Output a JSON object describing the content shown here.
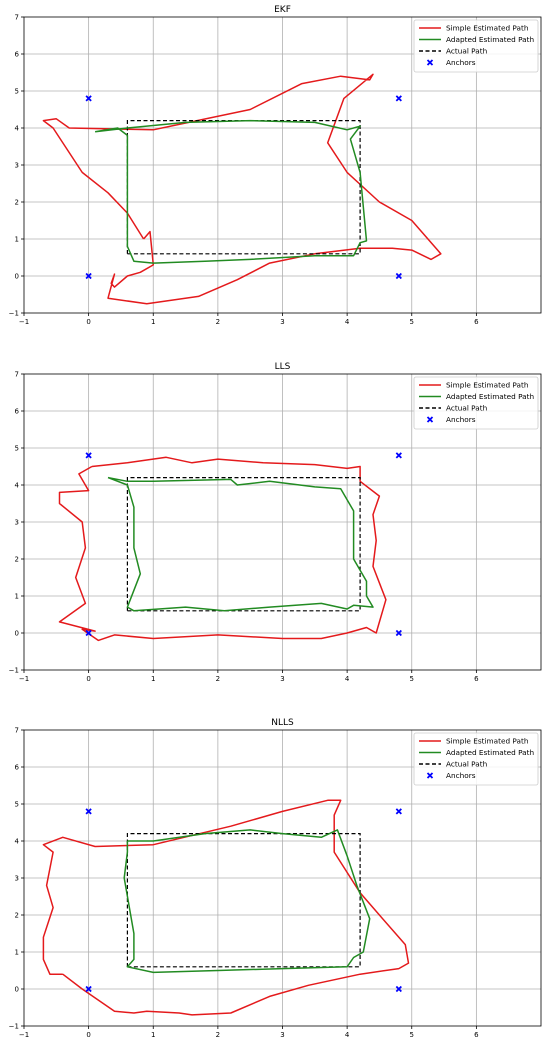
{
  "chart_data": [
    {
      "type": "line",
      "title": "EKF",
      "xlabel": "",
      "ylabel": "",
      "xlim": [
        -1,
        7
      ],
      "ylim": [
        -1,
        7
      ],
      "x_ticks": [
        -1,
        0,
        1,
        2,
        3,
        4,
        5,
        6
      ],
      "y_ticks": [
        -1,
        0,
        1,
        2,
        3,
        4,
        5,
        6,
        7
      ],
      "grid": true,
      "legend_position": "top-right",
      "legend": [
        "Simple Estimated Path",
        "Adapted Estimated Path",
        "Actual Path",
        "Anchors"
      ],
      "colors": {
        "simple": "#e41a1c",
        "adapted": "#228b22",
        "actual": "#000000",
        "anchors": "#0000ff"
      },
      "anchors": [
        [
          0,
          4.8
        ],
        [
          4.8,
          4.8
        ],
        [
          0,
          0
        ],
        [
          4.8,
          0
        ]
      ],
      "actual_path": [
        [
          0.6,
          0.6
        ],
        [
          4.2,
          0.6
        ],
        [
          4.2,
          4.2
        ],
        [
          0.6,
          4.2
        ],
        [
          0.6,
          0.6
        ]
      ],
      "series": [
        {
          "name": "Simple Estimated Path",
          "points": [
            [
              0.85,
              1.0
            ],
            [
              0.95,
              1.2
            ],
            [
              1.0,
              0.3
            ],
            [
              0.8,
              0.1
            ],
            [
              0.6,
              0.0
            ],
            [
              0.4,
              -0.3
            ],
            [
              0.35,
              -0.2
            ],
            [
              0.4,
              0.05
            ],
            [
              0.3,
              -0.6
            ],
            [
              0.9,
              -0.75
            ],
            [
              1.7,
              -0.55
            ],
            [
              2.3,
              -0.1
            ],
            [
              2.8,
              0.35
            ],
            [
              3.5,
              0.6
            ],
            [
              4.2,
              0.75
            ],
            [
              4.7,
              0.75
            ],
            [
              5.0,
              0.7
            ],
            [
              5.3,
              0.45
            ],
            [
              5.45,
              0.6
            ],
            [
              5.0,
              1.5
            ],
            [
              4.5,
              2.0
            ],
            [
              4.0,
              2.8
            ],
            [
              3.7,
              3.6
            ],
            [
              3.95,
              4.8
            ],
            [
              4.4,
              5.45
            ],
            [
              4.35,
              5.3
            ],
            [
              3.9,
              5.4
            ],
            [
              3.3,
              5.2
            ],
            [
              2.5,
              4.5
            ],
            [
              1.0,
              3.95
            ],
            [
              -0.3,
              4.0
            ],
            [
              -0.5,
              4.25
            ],
            [
              -0.7,
              4.2
            ],
            [
              -0.55,
              4.0
            ],
            [
              -0.1,
              2.8
            ],
            [
              0.3,
              2.25
            ],
            [
              0.6,
              1.7
            ],
            [
              0.85,
              1.0
            ]
          ]
        },
        {
          "name": "Adapted Estimated Path",
          "points": [
            [
              0.1,
              3.9
            ],
            [
              0.45,
              4.0
            ],
            [
              0.6,
              3.8
            ],
            [
              0.6,
              0.8
            ],
            [
              0.7,
              0.4
            ],
            [
              1.0,
              0.35
            ],
            [
              1.8,
              0.4
            ],
            [
              2.5,
              0.45
            ],
            [
              3.5,
              0.55
            ],
            [
              4.1,
              0.55
            ],
            [
              4.2,
              0.9
            ],
            [
              4.3,
              0.95
            ],
            [
              4.2,
              2.8
            ],
            [
              4.05,
              3.7
            ],
            [
              4.2,
              4.05
            ],
            [
              4.0,
              3.95
            ],
            [
              3.5,
              4.15
            ],
            [
              2.5,
              4.2
            ],
            [
              1.5,
              4.15
            ],
            [
              0.6,
              4.0
            ],
            [
              0.1,
              3.9
            ]
          ]
        }
      ]
    },
    {
      "type": "line",
      "title": "LLS",
      "xlabel": "",
      "ylabel": "",
      "xlim": [
        -1,
        7
      ],
      "ylim": [
        -1,
        7
      ],
      "x_ticks": [
        -1,
        0,
        1,
        2,
        3,
        4,
        5,
        6
      ],
      "y_ticks": [
        -1,
        0,
        1,
        2,
        3,
        4,
        5,
        6,
        7
      ],
      "grid": true,
      "legend_position": "top-right",
      "legend": [
        "Simple Estimated Path",
        "Adapted Estimated Path",
        "Actual Path",
        "Anchors"
      ],
      "colors": {
        "simple": "#e41a1c",
        "adapted": "#228b22",
        "actual": "#000000",
        "anchors": "#0000ff"
      },
      "anchors": [
        [
          0,
          4.8
        ],
        [
          4.8,
          4.8
        ],
        [
          0,
          0
        ],
        [
          4.8,
          0
        ]
      ],
      "actual_path": [
        [
          0.6,
          0.6
        ],
        [
          4.2,
          0.6
        ],
        [
          4.2,
          4.2
        ],
        [
          0.6,
          4.2
        ],
        [
          0.6,
          0.6
        ]
      ],
      "series": [
        {
          "name": "Simple Estimated Path",
          "points": [
            [
              0.05,
              4.5
            ],
            [
              0.6,
              4.6
            ],
            [
              1.2,
              4.75
            ],
            [
              1.6,
              4.6
            ],
            [
              2.0,
              4.7
            ],
            [
              2.7,
              4.6
            ],
            [
              3.5,
              4.55
            ],
            [
              4.0,
              4.45
            ],
            [
              4.2,
              4.5
            ],
            [
              4.2,
              4.1
            ],
            [
              4.5,
              3.7
            ],
            [
              4.4,
              3.2
            ],
            [
              4.45,
              2.5
            ],
            [
              4.4,
              1.8
            ],
            [
              4.6,
              0.9
            ],
            [
              4.45,
              0.0
            ],
            [
              4.3,
              0.15
            ],
            [
              4.0,
              0.0
            ],
            [
              3.6,
              -0.15
            ],
            [
              3.0,
              -0.15
            ],
            [
              2.0,
              -0.05
            ],
            [
              1.0,
              -0.15
            ],
            [
              0.4,
              -0.05
            ],
            [
              0.15,
              -0.2
            ],
            [
              -0.1,
              0.1
            ],
            [
              0.1,
              0.05
            ],
            [
              -0.45,
              0.3
            ],
            [
              -0.05,
              0.8
            ],
            [
              -0.2,
              1.5
            ],
            [
              -0.05,
              2.3
            ],
            [
              -0.1,
              3.0
            ],
            [
              -0.45,
              3.5
            ],
            [
              -0.45,
              3.8
            ],
            [
              0.0,
              3.85
            ],
            [
              -0.15,
              4.3
            ],
            [
              0.05,
              4.5
            ]
          ]
        },
        {
          "name": "Adapted Estimated Path",
          "points": [
            [
              0.3,
              4.2
            ],
            [
              0.6,
              4.1
            ],
            [
              1.0,
              4.1
            ],
            [
              2.2,
              4.15
            ],
            [
              2.3,
              4.0
            ],
            [
              2.8,
              4.1
            ],
            [
              3.5,
              3.95
            ],
            [
              3.9,
              3.9
            ],
            [
              4.0,
              3.6
            ],
            [
              4.1,
              3.3
            ],
            [
              4.1,
              2.0
            ],
            [
              4.3,
              1.4
            ],
            [
              4.3,
              1.0
            ],
            [
              4.4,
              0.7
            ],
            [
              4.1,
              0.75
            ],
            [
              4.0,
              0.65
            ],
            [
              3.6,
              0.8
            ],
            [
              2.8,
              0.7
            ],
            [
              2.1,
              0.6
            ],
            [
              1.5,
              0.7
            ],
            [
              0.7,
              0.6
            ],
            [
              0.6,
              0.7
            ],
            [
              0.8,
              1.6
            ],
            [
              0.7,
              2.3
            ],
            [
              0.7,
              2.9
            ],
            [
              0.7,
              3.4
            ],
            [
              0.6,
              4.0
            ],
            [
              0.3,
              4.2
            ]
          ]
        }
      ]
    },
    {
      "type": "line",
      "title": "NLLS",
      "xlabel": "",
      "ylabel": "",
      "xlim": [
        -1,
        7
      ],
      "ylim": [
        -1,
        7
      ],
      "x_ticks": [
        -1,
        0,
        1,
        2,
        3,
        4,
        5,
        6
      ],
      "y_ticks": [
        -1,
        0,
        1,
        2,
        3,
        4,
        5,
        6,
        7
      ],
      "grid": true,
      "legend_position": "top-right",
      "legend": [
        "Simple Estimated Path",
        "Adapted Estimated Path",
        "Actual Path",
        "Anchors"
      ],
      "colors": {
        "simple": "#e41a1c",
        "adapted": "#228b22",
        "actual": "#000000",
        "anchors": "#0000ff"
      },
      "anchors": [
        [
          0,
          4.8
        ],
        [
          4.8,
          4.8
        ],
        [
          0,
          0
        ],
        [
          4.8,
          0
        ]
      ],
      "actual_path": [
        [
          0.6,
          0.6
        ],
        [
          4.2,
          0.6
        ],
        [
          4.2,
          4.2
        ],
        [
          0.6,
          4.2
        ],
        [
          0.6,
          0.6
        ]
      ],
      "series": [
        {
          "name": "Simple Estimated Path",
          "points": [
            [
              -0.4,
              0.4
            ],
            [
              -0.1,
              0.0
            ],
            [
              0.4,
              -0.6
            ],
            [
              0.7,
              -0.65
            ],
            [
              0.9,
              -0.6
            ],
            [
              1.4,
              -0.65
            ],
            [
              1.6,
              -0.7
            ],
            [
              2.2,
              -0.65
            ],
            [
              2.8,
              -0.2
            ],
            [
              3.4,
              0.1
            ],
            [
              4.2,
              0.4
            ],
            [
              4.8,
              0.55
            ],
            [
              4.95,
              0.7
            ],
            [
              4.9,
              1.2
            ],
            [
              4.5,
              2.0
            ],
            [
              4.2,
              2.6
            ],
            [
              3.8,
              3.7
            ],
            [
              3.8,
              4.7
            ],
            [
              3.9,
              5.1
            ],
            [
              3.7,
              5.1
            ],
            [
              3.0,
              4.8
            ],
            [
              2.2,
              4.4
            ],
            [
              1.0,
              3.9
            ],
            [
              0.1,
              3.85
            ],
            [
              -0.4,
              4.1
            ],
            [
              -0.7,
              3.9
            ],
            [
              -0.55,
              3.7
            ],
            [
              -0.65,
              2.8
            ],
            [
              -0.55,
              2.2
            ],
            [
              -0.7,
              1.4
            ],
            [
              -0.7,
              0.8
            ],
            [
              -0.6,
              0.4
            ],
            [
              -0.4,
              0.4
            ]
          ]
        },
        {
          "name": "Adapted Estimated Path",
          "points": [
            [
              0.6,
              4.0
            ],
            [
              0.6,
              3.7
            ],
            [
              0.55,
              3.0
            ],
            [
              0.7,
              1.5
            ],
            [
              0.7,
              0.8
            ],
            [
              0.6,
              0.6
            ],
            [
              1.0,
              0.45
            ],
            [
              2.0,
              0.5
            ],
            [
              3.0,
              0.55
            ],
            [
              4.0,
              0.6
            ],
            [
              4.1,
              0.85
            ],
            [
              4.25,
              1.0
            ],
            [
              4.35,
              1.9
            ],
            [
              4.15,
              2.8
            ],
            [
              4.0,
              3.6
            ],
            [
              3.85,
              4.3
            ],
            [
              3.6,
              4.1
            ],
            [
              3.0,
              4.2
            ],
            [
              2.5,
              4.3
            ],
            [
              1.8,
              4.2
            ],
            [
              1.0,
              4.0
            ],
            [
              0.6,
              4.0
            ]
          ]
        }
      ]
    }
  ]
}
